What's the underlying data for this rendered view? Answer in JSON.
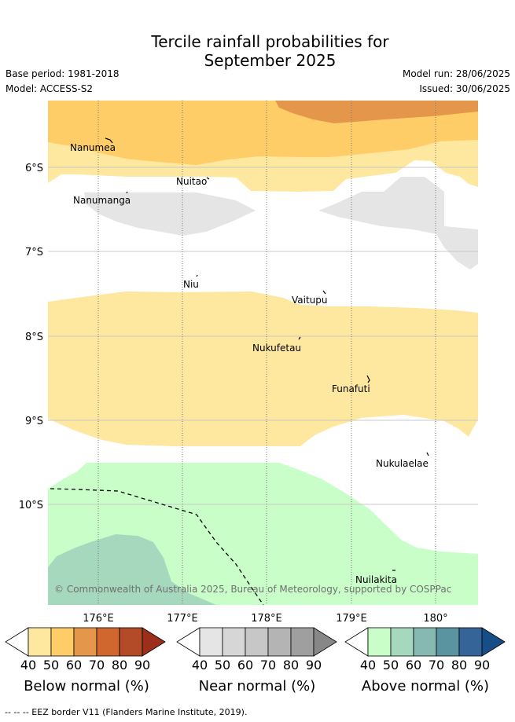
{
  "title": {
    "line1": "Tercile rainfall probabilities for",
    "line2": "September 2025"
  },
  "meta": {
    "base_period": "Base period: 1981-2018",
    "model": "Model: ACCESS-S2",
    "model_run": "Model run: 28/06/2025",
    "issued": "Issued: 30/06/2025"
  },
  "map": {
    "lat_labels": [
      "6°S",
      "7°S",
      "8°S",
      "9°S",
      "10°S"
    ],
    "lon_labels": [
      "176°E",
      "177°E",
      "178°E",
      "179°E",
      "180°"
    ],
    "places": [
      "Nanumea",
      "Nuitao",
      "Nanumanga",
      "Niu",
      "Vaitupu",
      "Nukufetau",
      "Funafuti",
      "Nukulaelae",
      "Nuilakita"
    ],
    "copyright": "© Commonwealth of Australia 2025, Bureau of Meteorology, supported by COSPPac",
    "colors": {
      "below_40": "#fee89f",
      "below_50": "#fecd67",
      "below_60": "#e4974a",
      "near_40": "#e5e5e5",
      "above_40": "#c9fec9",
      "above_50": "#a6d8bd"
    }
  },
  "colorbars": [
    {
      "label": "Below normal (%)",
      "ticks": [
        "40",
        "50",
        "60",
        "70",
        "80",
        "90"
      ],
      "colors": [
        "#fee89f",
        "#fecd67",
        "#e4974a",
        "#d0672f",
        "#b34a28",
        "#9b2f1c"
      ]
    },
    {
      "label": "Near normal (%)",
      "ticks": [
        "40",
        "50",
        "60",
        "70",
        "80",
        "90"
      ],
      "colors": [
        "#e5e5e5",
        "#d6d6d6",
        "#c7c7c7",
        "#b4b4b4",
        "#9f9f9f",
        "#878787"
      ]
    },
    {
      "label": "Above normal (%)",
      "ticks": [
        "40",
        "50",
        "60",
        "70",
        "80",
        "90"
      ],
      "colors": [
        "#c9fec9",
        "#a6d8bd",
        "#86b9b2",
        "#5a94a1",
        "#356499",
        "#184e86"
      ]
    }
  ],
  "footer": "--  --  -- EEZ border V11 (Flanders Marine Institute, 2019)."
}
